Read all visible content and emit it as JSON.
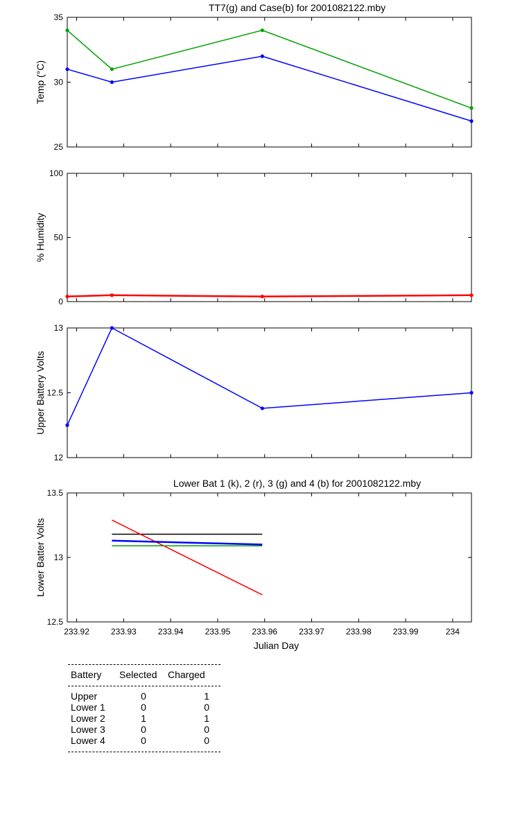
{
  "chart_data": [
    {
      "type": "line",
      "title": "TT7(g) and Case(b) for 2001082122.mby",
      "xlabel": "",
      "ylabel": "Temp  (°C)",
      "xlim": [
        233.918,
        234.004
      ],
      "ylim": [
        25,
        35
      ],
      "yticks": [
        25,
        30,
        35
      ],
      "series": [
        {
          "color": "#00a000",
          "x": [
            233.918,
            233.9275,
            233.9595,
            234.004
          ],
          "values": [
            34,
            31,
            34,
            28
          ]
        },
        {
          "color": "#0000ff",
          "x": [
            233.918,
            233.9275,
            233.9595,
            234.004
          ],
          "values": [
            31,
            30,
            32,
            27
          ]
        }
      ]
    },
    {
      "type": "line",
      "title": "",
      "xlabel": "",
      "ylabel": "% Humidity",
      "xlim": [
        233.918,
        234.004
      ],
      "ylim": [
        0,
        100
      ],
      "yticks": [
        0,
        50,
        100
      ],
      "series": [
        {
          "color": "#ff0000",
          "x": [
            233.918,
            233.9275,
            233.9595,
            234.004
          ],
          "values": [
            4,
            5,
            4,
            5
          ]
        }
      ]
    },
    {
      "type": "line",
      "title": "",
      "xlabel": "",
      "ylabel": "Upper Battery Volts",
      "xlim": [
        233.918,
        234.004
      ],
      "ylim": [
        12,
        13
      ],
      "yticks": [
        12,
        12.5,
        13
      ],
      "series": [
        {
          "color": "#0000ff",
          "x": [
            233.918,
            233.9275,
            233.9595,
            234.004
          ],
          "values": [
            12.25,
            13.0,
            12.38,
            12.5
          ]
        }
      ]
    },
    {
      "type": "line",
      "title": "Lower Bat 1 (k), 2 (r), 3 (g) and 4 (b) for 2001082122.mby",
      "xlabel": "Julian Day",
      "ylabel": "Lower Batter Volts",
      "xlim": [
        233.918,
        234.004
      ],
      "ylim": [
        12.5,
        13.5
      ],
      "yticks": [
        12.5,
        13,
        13.5
      ],
      "xticks": [
        233.92,
        233.93,
        233.94,
        233.95,
        233.96,
        233.97,
        233.98,
        233.99,
        234
      ],
      "xticklabels": [
        "233.92",
        "233.93",
        "233.94",
        "233.95",
        "233.96",
        "233.97",
        "233.98",
        "233.99",
        "234"
      ],
      "series": [
        {
          "color": "#000000",
          "x": [
            233.9275,
            233.9595
          ],
          "values": [
            13.18,
            13.18
          ]
        },
        {
          "color": "#ff0000",
          "x": [
            233.9275,
            233.9595
          ],
          "values": [
            13.29,
            12.71
          ]
        },
        {
          "color": "#00a000",
          "x": [
            233.9275,
            233.9595
          ],
          "values": [
            13.09,
            13.09
          ]
        },
        {
          "color": "#0000ff",
          "x": [
            233.9275,
            233.9595
          ],
          "values": [
            13.13,
            13.1
          ]
        }
      ]
    }
  ],
  "table": {
    "headers": [
      "Battery",
      "Selected",
      "Charged"
    ],
    "rows": [
      {
        "battery": "Upper",
        "selected": "0",
        "charged": "1"
      },
      {
        "battery": "Lower 1",
        "selected": "0",
        "charged": "0"
      },
      {
        "battery": "Lower 2",
        "selected": "1",
        "charged": "1"
      },
      {
        "battery": "Lower 3",
        "selected": "0",
        "charged": "0"
      },
      {
        "battery": "Lower 4",
        "selected": "0",
        "charged": "0"
      }
    ]
  }
}
